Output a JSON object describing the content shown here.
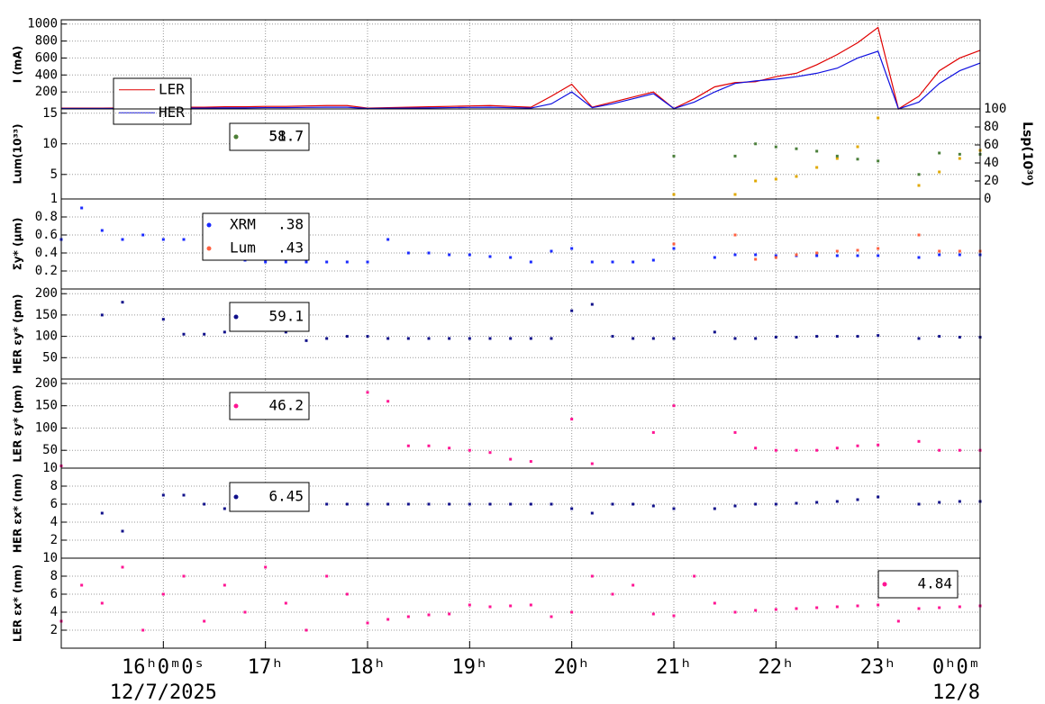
{
  "chart_data": [
    {
      "type": "line",
      "ylabel": "I (mA)",
      "xlim": [
        15,
        24
      ],
      "ylim": [
        0,
        1050
      ],
      "yticks": [
        200,
        400,
        600,
        800,
        1000
      ],
      "x": [
        15,
        15.2,
        15.4,
        15.6,
        15.8,
        16,
        16.2,
        16.4,
        16.6,
        16.8,
        17,
        17.2,
        17.4,
        17.6,
        17.8,
        18,
        18.2,
        18.4,
        18.6,
        18.8,
        19,
        19.2,
        19.4,
        19.6,
        19.8,
        20,
        20.2,
        20.4,
        20.6,
        20.8,
        21,
        21.2,
        21.4,
        21.6,
        21.8,
        22,
        22.2,
        22.4,
        22.6,
        22.8,
        23,
        23.2,
        23.4,
        23.6,
        23.8,
        24
      ],
      "series": [
        {
          "name": "LER",
          "color": "#e00000",
          "values": [
            10,
            10,
            10,
            12,
            15,
            15,
            20,
            20,
            25,
            25,
            30,
            30,
            35,
            40,
            40,
            10,
            15,
            20,
            25,
            30,
            35,
            40,
            30,
            20,
            150,
            290,
            20,
            80,
            140,
            200,
            5,
            120,
            260,
            310,
            320,
            380,
            420,
            520,
            640,
            780,
            960,
            0,
            150,
            450,
            600,
            690
          ]
        },
        {
          "name": "HER",
          "color": "#1010e0",
          "values": [
            5,
            5,
            5,
            5,
            8,
            8,
            10,
            10,
            12,
            12,
            15,
            15,
            18,
            20,
            20,
            5,
            8,
            10,
            12,
            15,
            18,
            20,
            15,
            10,
            60,
            200,
            15,
            60,
            120,
            180,
            5,
            80,
            200,
            300,
            330,
            350,
            380,
            420,
            480,
            600,
            680,
            0,
            80,
            300,
            450,
            540
          ]
        }
      ]
    },
    {
      "type": "scatter",
      "ylabel": "Lum(10³³)",
      "ylabel2": "Lsp(10³⁰)",
      "xlim": [
        15,
        24
      ],
      "ylim": [
        1,
        15.7
      ],
      "yticks": [
        1,
        5,
        10,
        15
      ],
      "y2lim": [
        0,
        100
      ],
      "y2ticks": [
        0,
        20,
        40,
        60,
        80,
        100
      ],
      "x": [
        15,
        15.2,
        15.4,
        15.6,
        15.8,
        16,
        16.2,
        16.4,
        16.6,
        16.8,
        17,
        17.2,
        17.4,
        17.6,
        17.8,
        18,
        18.2,
        18.4,
        18.6,
        18.8,
        19,
        19.2,
        19.4,
        19.6,
        19.8,
        20,
        20.2,
        20.4,
        20.6,
        20.8,
        21,
        21.2,
        21.4,
        21.6,
        21.8,
        22,
        22.2,
        22.4,
        22.6,
        22.8,
        23,
        23.2,
        23.4,
        23.6,
        23.8,
        24
      ],
      "series": [
        {
          "color": "#e0a800",
          "axis": "y2",
          "legend_value": 58.7,
          "values": [
            null,
            null,
            null,
            null,
            null,
            null,
            null,
            null,
            null,
            null,
            null,
            null,
            null,
            null,
            null,
            null,
            null,
            null,
            null,
            null,
            null,
            null,
            null,
            null,
            null,
            null,
            null,
            null,
            null,
            null,
            5,
            null,
            null,
            5,
            20,
            22,
            25,
            35,
            45,
            58,
            90,
            null,
            15,
            30,
            45,
            54
          ]
        },
        {
          "color": "#4a7f3a",
          "legend_value": 51.7,
          "values": [
            null,
            null,
            null,
            null,
            null,
            null,
            null,
            null,
            null,
            null,
            null,
            null,
            null,
            null,
            null,
            null,
            null,
            null,
            null,
            null,
            null,
            null,
            null,
            null,
            null,
            null,
            null,
            null,
            null,
            null,
            8,
            null,
            null,
            8,
            10,
            9.5,
            9.2,
            8.8,
            8,
            7.5,
            7.2,
            null,
            5,
            8.5,
            8.3,
            8.3
          ]
        }
      ]
    },
    {
      "type": "scatter",
      "ylabel": "Σy* (μm)",
      "xlim": [
        15,
        24
      ],
      "ylim": [
        0,
        1
      ],
      "yticks": [
        0.2,
        0.4,
        0.6,
        0.8
      ],
      "x": [
        15,
        15.2,
        15.4,
        15.6,
        15.8,
        16,
        16.2,
        16.4,
        16.6,
        16.8,
        17,
        17.2,
        17.4,
        17.6,
        17.8,
        18,
        18.2,
        18.4,
        18.6,
        18.8,
        19,
        19.2,
        19.4,
        19.6,
        19.8,
        20,
        20.2,
        20.4,
        20.6,
        20.8,
        21,
        21.2,
        21.4,
        21.6,
        21.8,
        22,
        22.2,
        22.4,
        22.6,
        22.8,
        23,
        23.2,
        23.4,
        23.6,
        23.8,
        24
      ],
      "series": [
        {
          "name": "XRM",
          "color": "#1a2aff",
          "legend_value": 0.38,
          "legend_value_label": ".38",
          "values": [
            0.55,
            0.9,
            0.65,
            0.55,
            0.6,
            0.55,
            0.55,
            0.35,
            0.33,
            0.32,
            0.3,
            0.3,
            0.3,
            0.3,
            0.3,
            0.3,
            0.55,
            0.4,
            0.4,
            0.38,
            0.38,
            0.36,
            0.35,
            0.3,
            0.42,
            0.45,
            0.3,
            0.3,
            0.3,
            0.32,
            0.45,
            null,
            0.35,
            0.38,
            0.38,
            0.37,
            0.37,
            0.37,
            0.37,
            0.37,
            0.37,
            null,
            0.35,
            0.38,
            0.38,
            0.38
          ]
        },
        {
          "name": "Lum",
          "color": "#ff6040",
          "legend_value": 0.43,
          "legend_value_label": ".43",
          "values": [
            null,
            null,
            null,
            null,
            null,
            null,
            null,
            null,
            null,
            null,
            null,
            null,
            null,
            null,
            null,
            null,
            null,
            null,
            null,
            null,
            null,
            null,
            null,
            null,
            null,
            null,
            null,
            null,
            null,
            null,
            0.5,
            null,
            null,
            0.6,
            0.33,
            0.35,
            0.38,
            0.4,
            0.42,
            0.43,
            0.45,
            null,
            0.6,
            0.42,
            0.42,
            0.42
          ]
        }
      ]
    },
    {
      "type": "scatter",
      "ylabel": "HER εy* (pm)",
      "xlim": [
        15,
        24
      ],
      "ylim": [
        0,
        211
      ],
      "yticks": [
        50,
        100,
        150,
        200
      ],
      "x": [
        15,
        15.2,
        15.4,
        15.6,
        15.8,
        16,
        16.2,
        16.4,
        16.6,
        16.8,
        17,
        17.2,
        17.4,
        17.6,
        17.8,
        18,
        18.2,
        18.4,
        18.6,
        18.8,
        19,
        19.2,
        19.4,
        19.6,
        19.8,
        20,
        20.2,
        20.4,
        20.6,
        20.8,
        21,
        21.2,
        21.4,
        21.6,
        21.8,
        22,
        22.2,
        22.4,
        22.6,
        22.8,
        23,
        23.2,
        23.4,
        23.6,
        23.8,
        24
      ],
      "series": [
        {
          "color": "#10108a",
          "legend_value": 59.1,
          "values": [
            null,
            null,
            150,
            180,
            null,
            140,
            105,
            105,
            110,
            115,
            115,
            110,
            90,
            95,
            100,
            100,
            95,
            95,
            95,
            95,
            95,
            95,
            95,
            95,
            95,
            160,
            175,
            100,
            95,
            95,
            95,
            null,
            110,
            95,
            95,
            98,
            98,
            100,
            100,
            100,
            102,
            null,
            95,
            100,
            98,
            98
          ]
        }
      ]
    },
    {
      "type": "scatter",
      "ylabel": "LER εy* (pm)",
      "xlim": [
        15,
        24
      ],
      "ylim": [
        10,
        210
      ],
      "yticks": [
        10,
        50,
        100,
        150,
        200
      ],
      "x": [
        15,
        15.2,
        15.4,
        15.6,
        15.8,
        16,
        16.2,
        16.4,
        16.6,
        16.8,
        17,
        17.2,
        17.4,
        17.6,
        17.8,
        18,
        18.2,
        18.4,
        18.6,
        18.8,
        19,
        19.2,
        19.4,
        19.6,
        19.8,
        20,
        20.2,
        20.4,
        20.6,
        20.8,
        21,
        21.2,
        21.4,
        21.6,
        21.8,
        22,
        22.2,
        22.4,
        22.6,
        22.8,
        23,
        23.2,
        23.4,
        23.6,
        23.8,
        24
      ],
      "series": [
        {
          "color": "#ff1493",
          "legend_value": 46.2,
          "values": [
            15,
            null,
            null,
            null,
            null,
            null,
            null,
            null,
            null,
            null,
            null,
            null,
            null,
            null,
            null,
            180,
            160,
            60,
            60,
            55,
            50,
            45,
            30,
            25,
            null,
            120,
            20,
            null,
            null,
            90,
            150,
            null,
            null,
            90,
            55,
            50,
            50,
            50,
            55,
            60,
            62,
            null,
            70,
            50,
            50,
            50
          ]
        }
      ]
    },
    {
      "type": "scatter",
      "ylabel": "HER εx* (nm)",
      "xlim": [
        15,
        24
      ],
      "ylim": [
        0,
        10
      ],
      "yticks": [
        2,
        4,
        6,
        8
      ],
      "x": [
        15,
        15.2,
        15.4,
        15.6,
        15.8,
        16,
        16.2,
        16.4,
        16.6,
        16.8,
        17,
        17.2,
        17.4,
        17.6,
        17.8,
        18,
        18.2,
        18.4,
        18.6,
        18.8,
        19,
        19.2,
        19.4,
        19.6,
        19.8,
        20,
        20.2,
        20.4,
        20.6,
        20.8,
        21,
        21.2,
        21.4,
        21.6,
        21.8,
        22,
        22.2,
        22.4,
        22.6,
        22.8,
        23,
        23.2,
        23.4,
        23.6,
        23.8,
        24
      ],
      "series": [
        {
          "color": "#10108a",
          "legend_value": 6.45,
          "values": [
            null,
            null,
            5,
            3,
            null,
            7,
            7,
            6,
            5.5,
            6,
            6,
            6,
            6,
            6,
            6,
            6,
            6,
            6,
            6,
            6,
            6,
            6,
            6,
            6,
            6,
            5.5,
            5,
            6,
            6,
            5.8,
            5.5,
            null,
            5.5,
            5.8,
            6,
            6,
            6.1,
            6.2,
            6.3,
            6.5,
            6.8,
            null,
            6,
            6.2,
            6.3,
            6.3
          ]
        }
      ]
    },
    {
      "type": "scatter",
      "ylabel": "LER εx* (nm)",
      "xlim": [
        15,
        24
      ],
      "ylim": [
        0,
        10
      ],
      "yticks": [
        2,
        4,
        6,
        8,
        10
      ],
      "xticks": [
        {
          "value": 16,
          "label": "16ʰ0ᵐ0ˢ"
        },
        {
          "value": 17,
          "label": "17ʰ"
        },
        {
          "value": 18,
          "label": "18ʰ"
        },
        {
          "value": 19,
          "label": "19ʰ"
        },
        {
          "value": 20,
          "label": "20ʰ"
        },
        {
          "value": 21,
          "label": "21ʰ"
        },
        {
          "value": 22,
          "label": "22ʰ"
        },
        {
          "value": 23,
          "label": "23ʰ"
        },
        {
          "value": 24,
          "label": "0ʰ0ᵐ"
        }
      ],
      "date_labels": [
        {
          "value": 16,
          "label": "12/7/2025"
        },
        {
          "value": 24,
          "label": "12/8"
        }
      ],
      "x": [
        15,
        15.2,
        15.4,
        15.6,
        15.8,
        16,
        16.2,
        16.4,
        16.6,
        16.8,
        17,
        17.2,
        17.4,
        17.6,
        17.8,
        18,
        18.2,
        18.4,
        18.6,
        18.8,
        19,
        19.2,
        19.4,
        19.6,
        19.8,
        20,
        20.2,
        20.4,
        20.6,
        20.8,
        21,
        21.2,
        21.4,
        21.6,
        21.8,
        22,
        22.2,
        22.4,
        22.6,
        22.8,
        23,
        23.2,
        23.4,
        23.6,
        23.8,
        24
      ],
      "series": [
        {
          "color": "#ff1493",
          "legend_value": 4.84,
          "values": [
            3,
            7,
            5,
            9,
            2,
            6,
            8,
            3,
            7,
            4,
            9,
            5,
            2,
            8,
            6,
            2.8,
            3.2,
            3.5,
            3.7,
            3.8,
            4.8,
            4.6,
            4.7,
            4.8,
            3.5,
            4,
            8,
            6,
            7,
            3.8,
            3.6,
            8,
            5,
            4,
            4.2,
            4.3,
            4.4,
            4.5,
            4.6,
            4.7,
            4.8,
            3,
            4.4,
            4.5,
            4.6,
            4.7
          ]
        }
      ]
    }
  ]
}
